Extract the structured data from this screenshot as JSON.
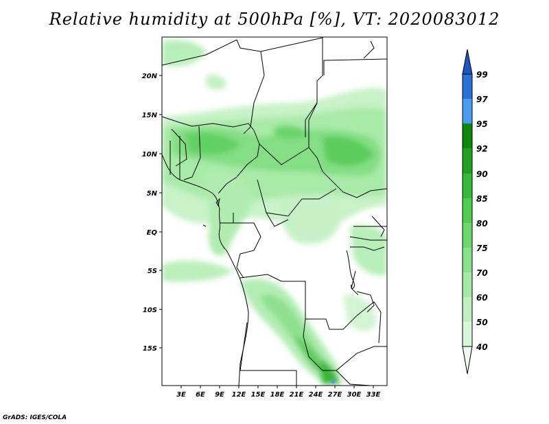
{
  "title": "Relative humidity at 500hPa [%], VT: 2020083012",
  "credit": "GrADS: IGES/COLA",
  "map": {
    "lat_labels": [
      "20N",
      "15N",
      "10N",
      "5N",
      "EQ",
      "5S",
      "10S",
      "15S"
    ],
    "lon_labels": [
      "3E",
      "6E",
      "9E",
      "12E",
      "15E",
      "18E",
      "21E",
      "24E",
      "27E",
      "30E",
      "33E"
    ]
  },
  "colorbar": {
    "levels": [
      "40",
      "50",
      "60",
      "70",
      "75",
      "80",
      "85",
      "90",
      "92",
      "95",
      "97",
      "99"
    ],
    "colors": [
      "#f0fcf0",
      "#d8f6d8",
      "#c0f0c0",
      "#a4eaa4",
      "#88e288",
      "#6cd86c",
      "#50cc50",
      "#38b838",
      "#20a020",
      "#0c880c",
      "#4a9cee",
      "#2a72d8",
      "#1a58c0"
    ]
  }
}
